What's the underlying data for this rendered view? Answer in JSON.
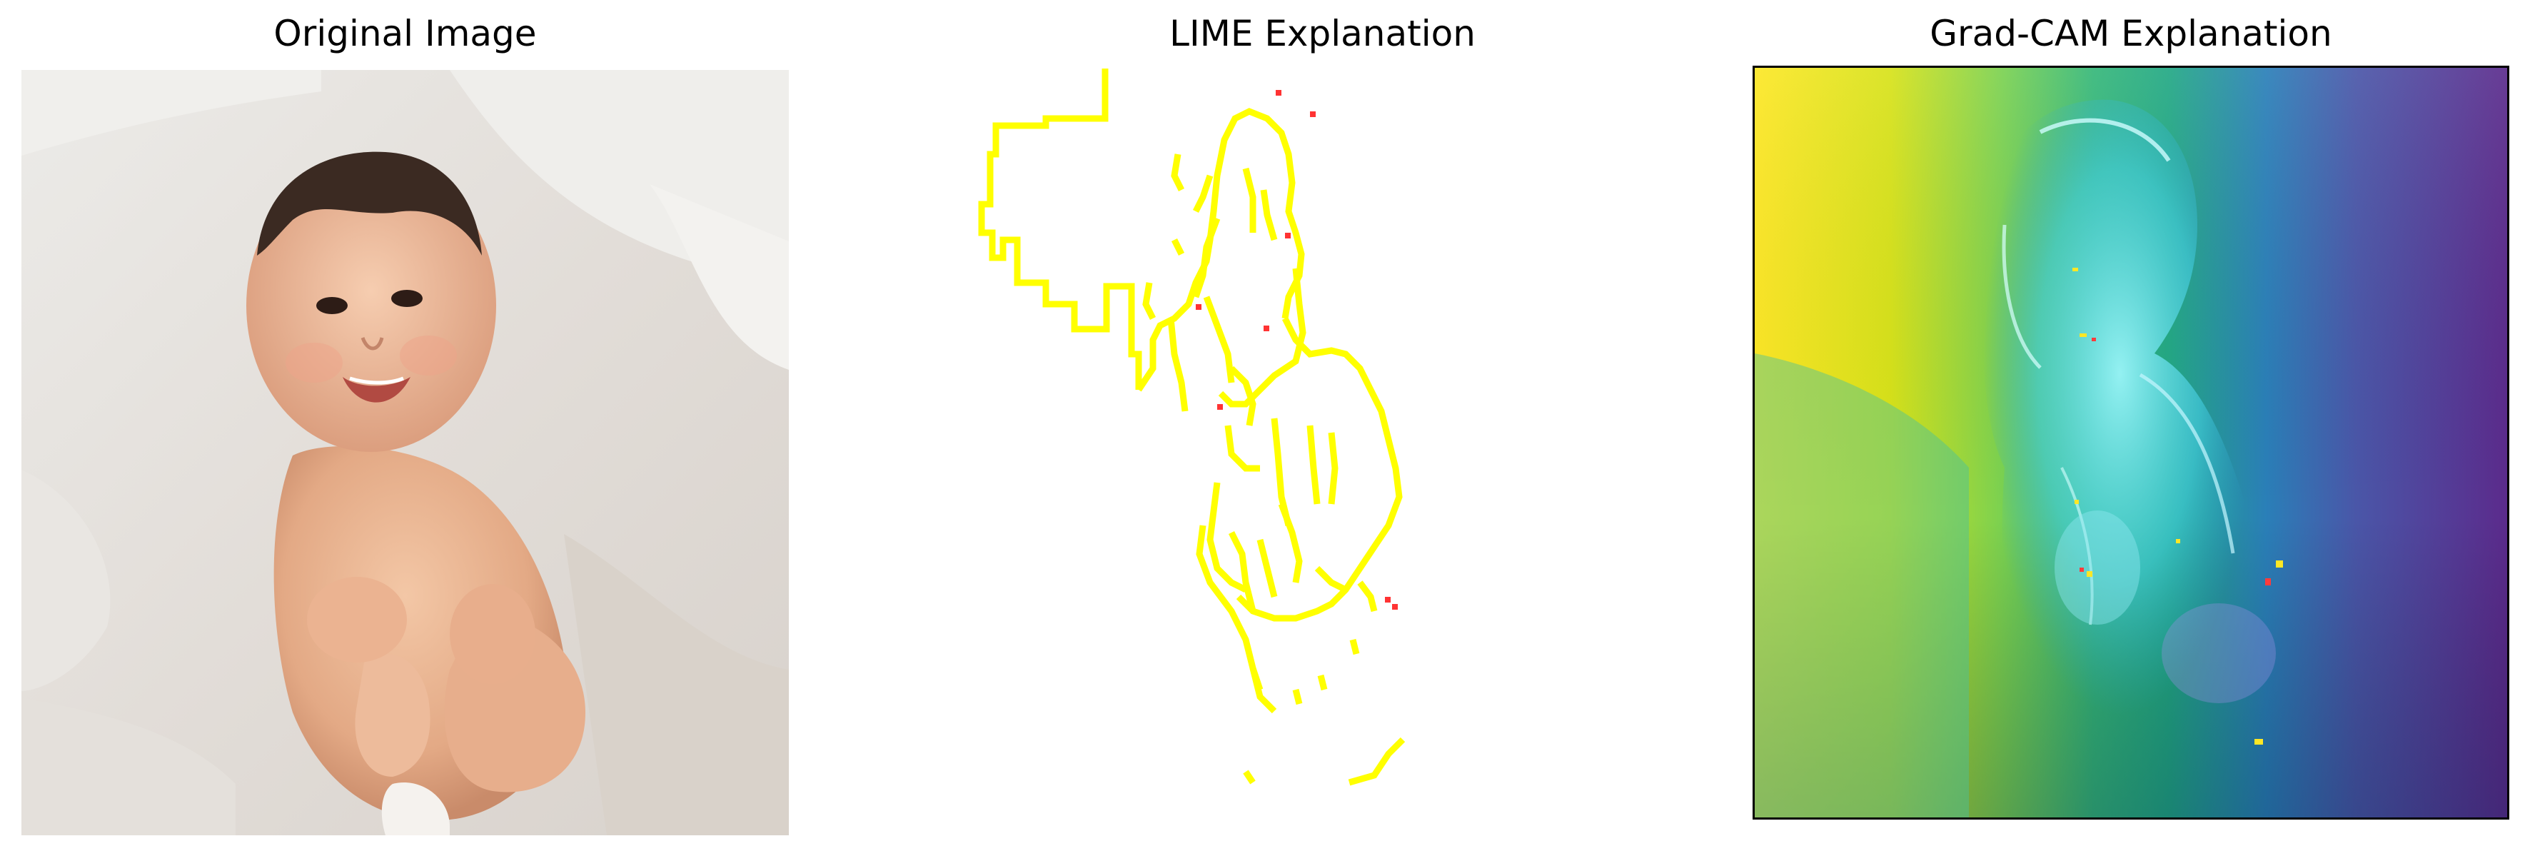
{
  "panels": [
    {
      "title": "Original Image"
    },
    {
      "title": "LIME Explanation"
    },
    {
      "title": "Grad-CAM Explanation"
    }
  ],
  "colors": {
    "lime_boundary": "#ffff00",
    "lime_hotspot": "#ff3333",
    "gradcam_left": "#fde725",
    "gradcam_mid": "#35b779",
    "gradcam_cyan": "#40d8e8",
    "gradcam_right": "#5b2b8c"
  }
}
